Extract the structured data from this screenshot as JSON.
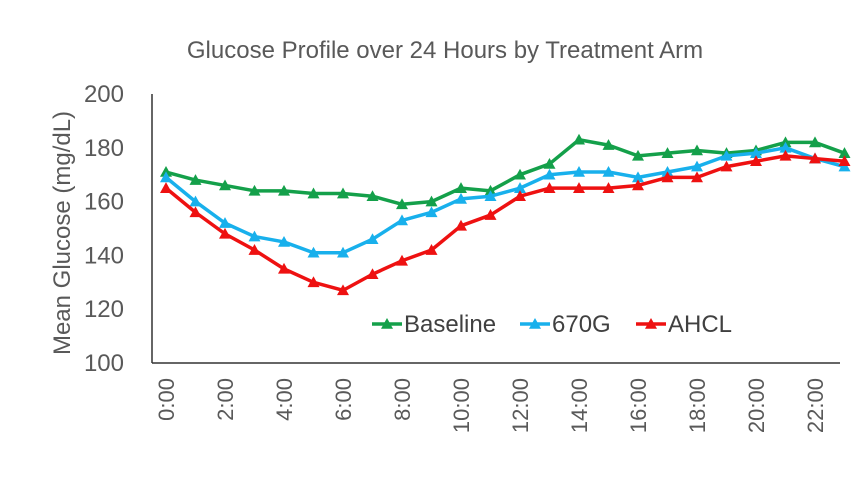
{
  "chart_data": {
    "type": "line",
    "title": "Glucose Profile over 24 Hours by Treatment Arm",
    "xlabel": "",
    "ylabel": "Mean Glucose (mg/dL)",
    "ylim": [
      100,
      200
    ],
    "yticks": [
      100,
      120,
      140,
      160,
      180,
      200
    ],
    "x": [
      0,
      1,
      2,
      3,
      4,
      5,
      6,
      7,
      8,
      9,
      10,
      11,
      12,
      13,
      14,
      15,
      16,
      17,
      18,
      19,
      20,
      21,
      22,
      23
    ],
    "xtick_labels": [
      "0:00",
      "2:00",
      "4:00",
      "6:00",
      "8:00",
      "10:00",
      "12:00",
      "14:00",
      "16:00",
      "18:00",
      "20:00",
      "22:00"
    ],
    "xtick_positions": [
      0,
      2,
      4,
      6,
      8,
      10,
      12,
      14,
      16,
      18,
      20,
      22
    ],
    "grid": false,
    "legend_position": "lower-right",
    "series": [
      {
        "name": "Baseline",
        "color": "#14A04A",
        "marker": "triangle",
        "values": [
          171,
          168,
          166,
          164,
          164,
          163,
          163,
          162,
          159,
          160,
          165,
          164,
          170,
          174,
          183,
          181,
          177,
          178,
          179,
          178,
          179,
          182,
          182,
          178
        ]
      },
      {
        "name": "670G",
        "color": "#18B0EC",
        "marker": "triangle",
        "values": [
          169,
          160,
          152,
          147,
          145,
          141,
          141,
          146,
          153,
          156,
          161,
          162,
          165,
          170,
          171,
          171,
          169,
          171,
          173,
          177,
          178,
          180,
          176,
          173
        ]
      },
      {
        "name": "AHCL",
        "color": "#EE1111",
        "marker": "triangle",
        "values": [
          165,
          156,
          148,
          142,
          135,
          130,
          127,
          133,
          138,
          142,
          151,
          155,
          162,
          165,
          165,
          165,
          166,
          169,
          169,
          173,
          175,
          177,
          176,
          175
        ]
      }
    ]
  }
}
